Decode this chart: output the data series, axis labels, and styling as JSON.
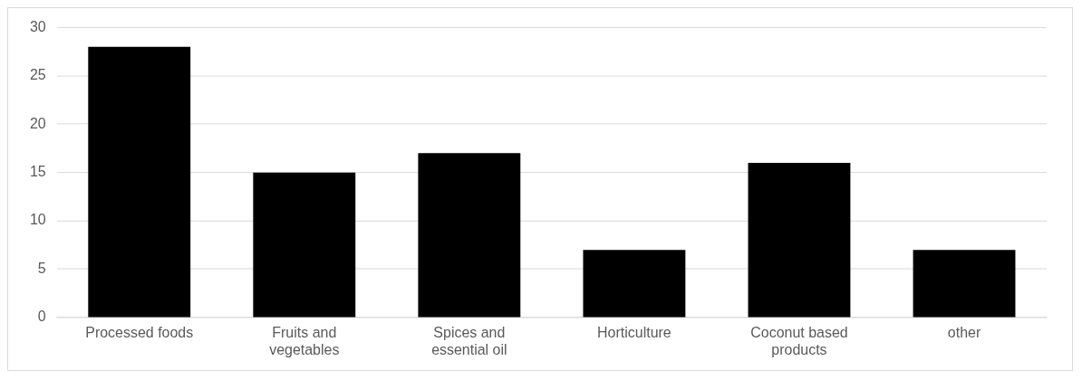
{
  "chart_data": {
    "type": "bar",
    "categories": [
      "Processed foods",
      "Fruits and vegetables",
      "Spices and essential oil",
      "Horticulture",
      "Coconut based products",
      "other"
    ],
    "values": [
      28,
      15,
      17,
      7,
      16,
      7
    ],
    "color": "#000000",
    "ylim": [
      0,
      30
    ],
    "yticks": [
      0,
      5,
      10,
      15,
      20,
      25,
      30
    ],
    "grid": "y",
    "legend": false
  }
}
